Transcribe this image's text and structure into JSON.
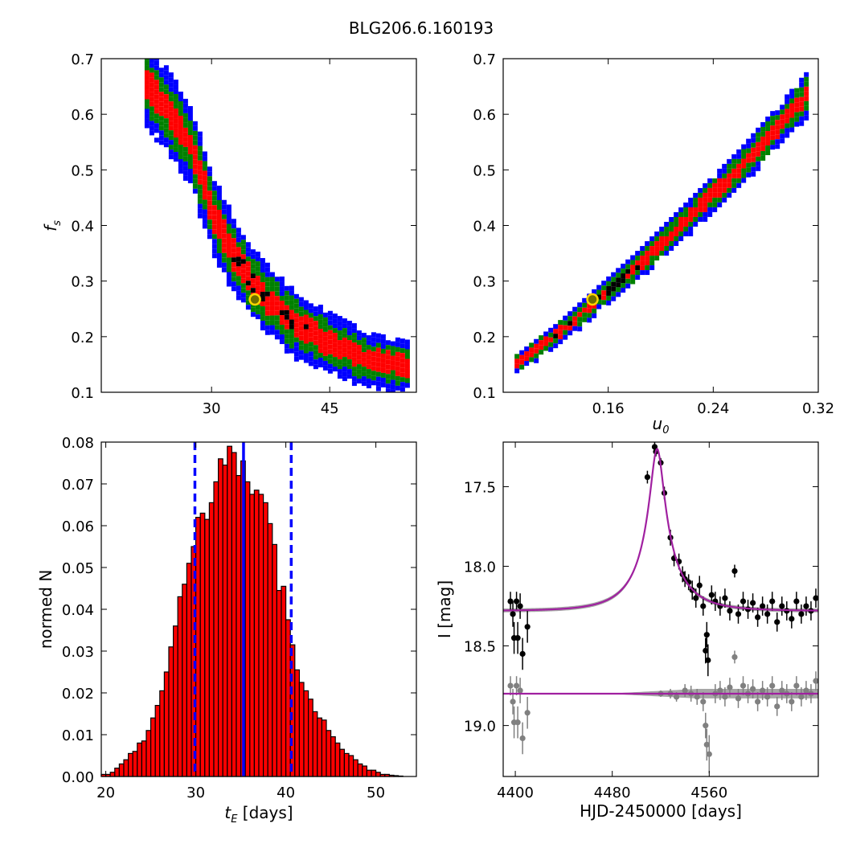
{
  "title": "BLG206.6.160193",
  "colors": {
    "blue": "#0000ff",
    "green": "#008000",
    "red": "#ff0000",
    "black": "#000000",
    "gray": "#808080",
    "purple": "#a020a0",
    "marker_face": "#6e6e00",
    "marker_edge": "#ffd400"
  },
  "chart_data": [
    {
      "id": "fs_vs_tE",
      "type": "heatmap",
      "title": "",
      "xlabel": "",
      "ylabel": "f_s",
      "xlim": [
        16,
        56
      ],
      "ylim": [
        0.1,
        0.7
      ],
      "xticks": [
        30,
        45
      ],
      "yticks": [
        0.1,
        0.2,
        0.3,
        0.4,
        0.5,
        0.6,
        0.7
      ],
      "levels": [
        "blue",
        "green",
        "red",
        "black"
      ],
      "best_fit": {
        "x": 35.5,
        "y": 0.267
      },
      "ridge": [
        [
          21.5,
          0.66
        ],
        [
          27,
          0.55
        ],
        [
          30,
          0.42
        ],
        [
          33,
          0.34
        ],
        [
          36,
          0.28
        ],
        [
          40,
          0.23
        ],
        [
          45,
          0.19
        ],
        [
          50,
          0.16
        ],
        [
          55,
          0.15
        ]
      ]
    },
    {
      "id": "fs_vs_u0",
      "type": "heatmap",
      "title": "",
      "xlabel": "u_0",
      "ylabel": "",
      "xlim": [
        0.08,
        0.32
      ],
      "ylim": [
        0.1,
        0.7
      ],
      "xticks": [
        0.16,
        0.24,
        0.32
      ],
      "yticks": [
        0.1,
        0.2,
        0.3,
        0.4,
        0.5,
        0.6,
        0.7
      ],
      "levels": [
        "blue",
        "green",
        "red",
        "black"
      ],
      "best_fit": {
        "x": 0.148,
        "y": 0.267
      },
      "ridge": [
        [
          0.085,
          0.15
        ],
        [
          0.12,
          0.21
        ],
        [
          0.148,
          0.267
        ],
        [
          0.18,
          0.33
        ],
        [
          0.22,
          0.42
        ],
        [
          0.26,
          0.51
        ],
        [
          0.31,
          0.64
        ]
      ]
    },
    {
      "id": "tE_histogram",
      "type": "bar",
      "title": "",
      "xlabel": "t_E [days]",
      "ylabel": "normed N",
      "xlim": [
        19.5,
        54.5
      ],
      "ylim": [
        0,
        0.08
      ],
      "xticks": [
        20,
        30,
        40,
        50
      ],
      "yticks": [
        0.0,
        0.01,
        0.02,
        0.03,
        0.04,
        0.05,
        0.06,
        0.07,
        0.08
      ],
      "bin_start": 19.5,
      "bin_width": 0.5,
      "values": [
        0.0005,
        0.0005,
        0.001,
        0.002,
        0.003,
        0.004,
        0.0055,
        0.006,
        0.008,
        0.0085,
        0.011,
        0.014,
        0.017,
        0.0205,
        0.025,
        0.031,
        0.036,
        0.043,
        0.046,
        0.051,
        0.055,
        0.062,
        0.063,
        0.0615,
        0.0655,
        0.0705,
        0.076,
        0.0745,
        0.079,
        0.0775,
        0.072,
        0.0755,
        0.0705,
        0.0675,
        0.0685,
        0.0675,
        0.0655,
        0.0605,
        0.0555,
        0.0445,
        0.0455,
        0.0375,
        0.0315,
        0.0255,
        0.0225,
        0.0205,
        0.0185,
        0.0155,
        0.014,
        0.0135,
        0.011,
        0.0095,
        0.008,
        0.0065,
        0.0055,
        0.005,
        0.004,
        0.003,
        0.0025,
        0.0015,
        0.0015,
        0.001,
        0.0005,
        0.0005,
        0.0003,
        0.0002,
        0.0001
      ],
      "vlines": [
        {
          "x": 35.3,
          "style": "solid"
        },
        {
          "x": 29.9,
          "style": "dashed"
        },
        {
          "x": 40.6,
          "style": "dashed"
        }
      ]
    },
    {
      "id": "lightcurve",
      "type": "scatter",
      "title": "",
      "xlabel": "HJD-2450000 [days]",
      "ylabel": "I [mag]",
      "xlim": [
        4390,
        4650
      ],
      "ylim": [
        19.32,
        17.22
      ],
      "xticks": [
        4400,
        4480,
        4560
      ],
      "yticks": [
        17.5,
        18.0,
        18.5,
        19.0
      ],
      "model": {
        "t0": 4517,
        "tE": 35.5,
        "u0": 0.148,
        "fs": 0.267,
        "baseline": 18.28
      },
      "residual_baseline": 18.8,
      "series": [
        {
          "name": "",
          "color": "black",
          "points": [
            [
              4396,
              18.22,
              0.06
            ],
            [
              4398,
              18.3,
              0.08
            ],
            [
              4399,
              18.45,
              0.1
            ],
            [
              4401,
              18.22,
              0.06
            ],
            [
              4402,
              18.45,
              0.1
            ],
            [
              4404,
              18.25,
              0.08
            ],
            [
              4406,
              18.55,
              0.1
            ],
            [
              4410,
              18.38,
              0.1
            ],
            [
              4509,
              17.44,
              0.04
            ],
            [
              4515,
              17.25,
              0.03
            ],
            [
              4516,
              17.28,
              0.03
            ],
            [
              4520,
              17.35,
              0.03
            ],
            [
              4523,
              17.54,
              0.04
            ],
            [
              4528,
              17.82,
              0.05
            ],
            [
              4531,
              17.95,
              0.05
            ],
            [
              4535,
              17.97,
              0.05
            ],
            [
              4538,
              18.05,
              0.05
            ],
            [
              4540,
              18.08,
              0.05
            ],
            [
              4543,
              18.1,
              0.05
            ],
            [
              4546,
              18.15,
              0.06
            ],
            [
              4549,
              18.2,
              0.06
            ],
            [
              4552,
              18.12,
              0.06
            ],
            [
              4555,
              18.25,
              0.06
            ],
            [
              4557,
              18.53,
              0.08
            ],
            [
              4559,
              18.59,
              0.1
            ],
            [
              4558,
              18.43,
              0.08
            ],
            [
              4562,
              18.18,
              0.06
            ],
            [
              4565,
              18.22,
              0.06
            ],
            [
              4569,
              18.25,
              0.06
            ],
            [
              4573,
              18.2,
              0.06
            ],
            [
              4577,
              18.28,
              0.06
            ],
            [
              4581,
              18.03,
              0.04
            ],
            [
              4584,
              18.3,
              0.06
            ],
            [
              4588,
              18.22,
              0.06
            ],
            [
              4592,
              18.27,
              0.06
            ],
            [
              4596,
              18.23,
              0.06
            ],
            [
              4600,
              18.32,
              0.06
            ],
            [
              4604,
              18.25,
              0.06
            ],
            [
              4608,
              18.3,
              0.06
            ],
            [
              4612,
              18.22,
              0.06
            ],
            [
              4616,
              18.35,
              0.06
            ],
            [
              4620,
              18.25,
              0.06
            ],
            [
              4624,
              18.28,
              0.06
            ],
            [
              4628,
              18.33,
              0.06
            ],
            [
              4632,
              18.22,
              0.06
            ],
            [
              4636,
              18.3,
              0.06
            ],
            [
              4640,
              18.25,
              0.06
            ],
            [
              4644,
              18.28,
              0.06
            ],
            [
              4648,
              18.2,
              0.06
            ]
          ]
        },
        {
          "name": "",
          "color": "gray",
          "points": [
            [
              4396,
              18.75,
              0.06
            ],
            [
              4398,
              18.85,
              0.08
            ],
            [
              4399,
              18.98,
              0.1
            ],
            [
              4401,
              18.75,
              0.06
            ],
            [
              4402,
              18.98,
              0.1
            ],
            [
              4404,
              18.78,
              0.08
            ],
            [
              4406,
              19.08,
              0.1
            ],
            [
              4410,
              18.92,
              0.1
            ],
            [
              4520,
              18.8,
              0.02
            ],
            [
              4528,
              18.8,
              0.03
            ],
            [
              4533,
              18.82,
              0.03
            ],
            [
              4540,
              18.78,
              0.04
            ],
            [
              4545,
              18.8,
              0.05
            ],
            [
              4550,
              18.82,
              0.05
            ],
            [
              4555,
              18.85,
              0.06
            ],
            [
              4557,
              19.0,
              0.08
            ],
            [
              4558,
              19.12,
              0.1
            ],
            [
              4560,
              19.18,
              0.12
            ],
            [
              4565,
              18.8,
              0.06
            ],
            [
              4569,
              18.78,
              0.06
            ],
            [
              4573,
              18.82,
              0.06
            ],
            [
              4577,
              18.76,
              0.06
            ],
            [
              4581,
              18.57,
              0.04
            ],
            [
              4584,
              18.83,
              0.06
            ],
            [
              4588,
              18.75,
              0.06
            ],
            [
              4592,
              18.8,
              0.06
            ],
            [
              4596,
              18.77,
              0.06
            ],
            [
              4600,
              18.85,
              0.06
            ],
            [
              4604,
              18.78,
              0.06
            ],
            [
              4608,
              18.82,
              0.06
            ],
            [
              4612,
              18.75,
              0.06
            ],
            [
              4616,
              18.88,
              0.06
            ],
            [
              4620,
              18.78,
              0.06
            ],
            [
              4624,
              18.8,
              0.06
            ],
            [
              4628,
              18.85,
              0.06
            ],
            [
              4632,
              18.75,
              0.06
            ],
            [
              4636,
              18.82,
              0.06
            ],
            [
              4640,
              18.78,
              0.06
            ],
            [
              4644,
              18.8,
              0.06
            ],
            [
              4648,
              18.72,
              0.06
            ]
          ]
        }
      ]
    }
  ]
}
